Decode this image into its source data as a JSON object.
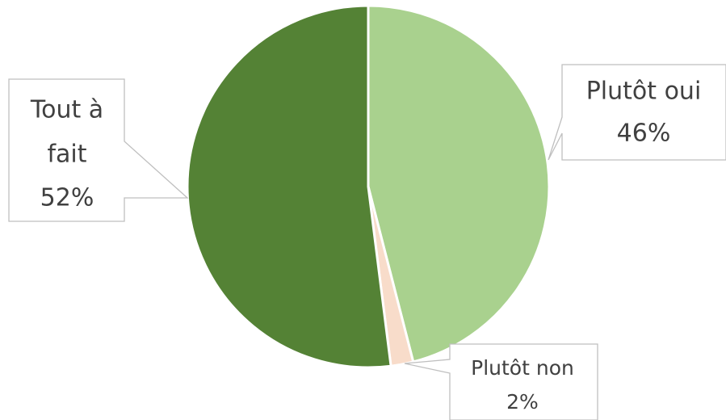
{
  "chart_data": {
    "type": "pie",
    "title": "",
    "series": [
      {
        "values": [
          46,
          2,
          52
        ]
      }
    ],
    "categories": [
      "Plutôt oui",
      "Plutôt non",
      "Tout à fait"
    ],
    "slices": [
      {
        "label": "Plutôt oui",
        "value": 46,
        "percent_label": "46%",
        "color": "#a9d18e"
      },
      {
        "label": "Plutôt non",
        "value": 2,
        "percent_label": "2%",
        "color": "#f8dcca"
      },
      {
        "label": "Tout à fait",
        "value": 52,
        "percent_label": "52%",
        "color": "#548235"
      }
    ],
    "legend": false,
    "data_labels": "outside-with-callouts"
  }
}
